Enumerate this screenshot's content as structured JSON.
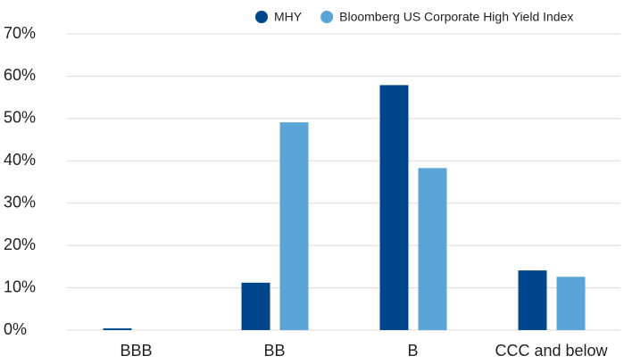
{
  "chart_data": {
    "type": "bar",
    "categories": [
      "BBB",
      "BB",
      "B",
      "CCC and below"
    ],
    "series": [
      {
        "name": "MHY",
        "color": "#00468b",
        "values": [
          0.4,
          11.2,
          57.9,
          14.1
        ]
      },
      {
        "name": "Bloomberg US Corporate High Yield Index",
        "color": "#5ba4d6",
        "values": [
          0,
          49.1,
          38.3,
          12.6
        ]
      }
    ],
    "ylim": [
      0,
      70
    ],
    "yticks": [
      {
        "value": 0,
        "label": "0%"
      },
      {
        "value": 10,
        "label": "10%"
      },
      {
        "value": 20,
        "label": "20%"
      },
      {
        "value": 30,
        "label": "30%"
      },
      {
        "value": 40,
        "label": "40%"
      },
      {
        "value": 50,
        "label": "50%"
      },
      {
        "value": 60,
        "label": "60%"
      },
      {
        "value": 70,
        "label": "70%"
      }
    ],
    "grid": true,
    "legend": "top"
  }
}
